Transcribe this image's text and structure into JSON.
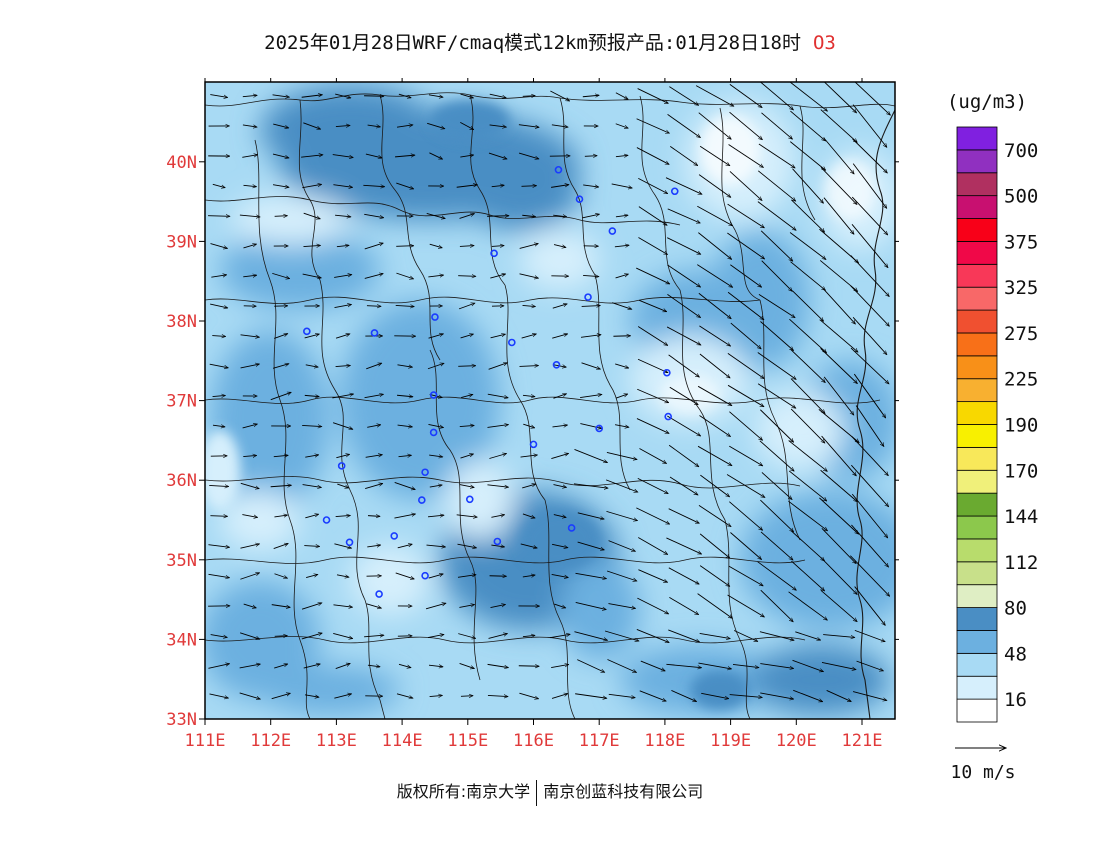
{
  "title": {
    "main": "2025年01月28日WRF/cmaq模式12km预报产品:01月28日18时",
    "species": "O3"
  },
  "axes": {
    "lat_labels": [
      "40N",
      "39N",
      "38N",
      "37N",
      "36N",
      "35N",
      "34N",
      "33N"
    ],
    "lon_labels": [
      "111E",
      "112E",
      "113E",
      "114E",
      "115E",
      "116E",
      "117E",
      "118E",
      "119E",
      "120E",
      "121E"
    ]
  },
  "legend": {
    "unit": "(ug/m3)",
    "colors": [
      "#ffffff",
      "#d6effc",
      "#a8daf4",
      "#6cb0e0",
      "#4a8ec4",
      "#dfeec4",
      "#c8e08a",
      "#b8dc6c",
      "#8cc84c",
      "#6aaa30",
      "#f0f07a",
      "#f8e85a",
      "#f8f000",
      "#f8d800",
      "#f8b030",
      "#f89018",
      "#f87018",
      "#f05030",
      "#f86868",
      "#f83858",
      "#f00848",
      "#f80018",
      "#c81070",
      "#b03060",
      "#9030c0",
      "#8020e0"
    ],
    "labels": [
      "16",
      "48",
      "80",
      "112",
      "144",
      "170",
      "190",
      "225",
      "275",
      "325",
      "375",
      "500",
      "700"
    ],
    "wind_ref_label": "10 m/s"
  },
  "cities": [
    {
      "lon": 115.4,
      "lat": 38.85
    },
    {
      "lon": 116.38,
      "lat": 39.9
    },
    {
      "lon": 116.7,
      "lat": 39.53
    },
    {
      "lon": 117.2,
      "lat": 39.13
    },
    {
      "lon": 118.15,
      "lat": 39.63
    },
    {
      "lon": 114.5,
      "lat": 38.05
    },
    {
      "lon": 116.83,
      "lat": 38.3
    },
    {
      "lon": 112.55,
      "lat": 37.87
    },
    {
      "lon": 113.58,
      "lat": 37.85
    },
    {
      "lon": 115.67,
      "lat": 37.73
    },
    {
      "lon": 116.35,
      "lat": 37.45
    },
    {
      "lon": 114.48,
      "lat": 37.07
    },
    {
      "lon": 114.48,
      "lat": 36.6
    },
    {
      "lon": 116.0,
      "lat": 36.45
    },
    {
      "lon": 117.0,
      "lat": 36.65
    },
    {
      "lon": 118.05,
      "lat": 36.8
    },
    {
      "lon": 118.03,
      "lat": 37.35
    },
    {
      "lon": 113.08,
      "lat": 36.18
    },
    {
      "lon": 114.35,
      "lat": 36.1
    },
    {
      "lon": 114.3,
      "lat": 35.75
    },
    {
      "lon": 115.03,
      "lat": 35.76
    },
    {
      "lon": 112.85,
      "lat": 35.5
    },
    {
      "lon": 113.2,
      "lat": 35.22
    },
    {
      "lon": 113.88,
      "lat": 35.3
    },
    {
      "lon": 115.45,
      "lat": 35.23
    },
    {
      "lon": 116.58,
      "lat": 35.4
    },
    {
      "lon": 114.35,
      "lat": 34.8
    },
    {
      "lon": 113.65,
      "lat": 34.57
    }
  ],
  "copyright": {
    "left": "版权所有:南京大学",
    "right": "南京创蓝科技有限公司"
  }
}
